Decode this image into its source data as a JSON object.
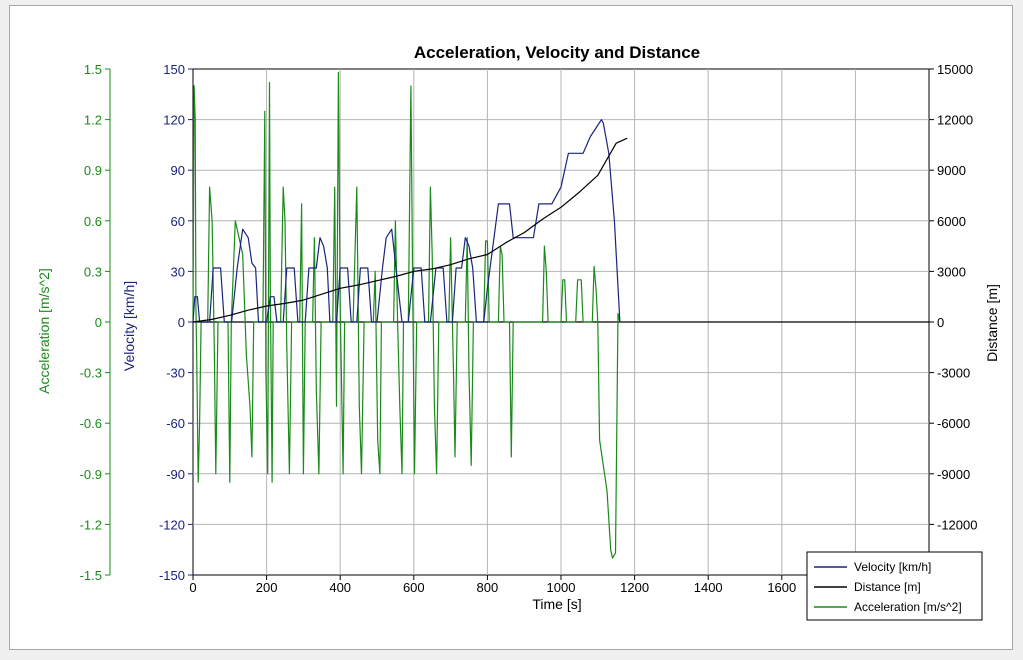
{
  "colors": {
    "acceleration": "#1a8a1a",
    "velocity": "#1a237e",
    "distance": "#000000",
    "grid": "#b4b4b4"
  },
  "chart_data": {
    "type": "line",
    "title": "Acceleration, Velocity and Distance",
    "xlabel": "Time [s]",
    "xlim": [
      0,
      2000
    ],
    "x_ticks": [
      "0",
      "200",
      "400",
      "600",
      "800",
      "1000",
      "1200",
      "1400",
      "1600"
    ],
    "grid": true,
    "legend_position": "bottom-right",
    "axes": {
      "acceleration": {
        "label": "Acceleration [m/s^2]",
        "range": [
          -1.5,
          1.5
        ],
        "ticks": [
          "1.5",
          "1.2",
          "0.9",
          "0.6",
          "0.3",
          "0",
          "-0.3",
          "-0.6",
          "-0.9",
          "-1.2",
          "-1.5"
        ]
      },
      "velocity": {
        "label": "Velocity [km/h]",
        "range": [
          -150,
          150
        ],
        "ticks": [
          "150",
          "120",
          "90",
          "60",
          "30",
          "0",
          "-30",
          "-60",
          "-90",
          "-120",
          "-150"
        ]
      },
      "distance": {
        "label": "Distance [m]",
        "range": [
          -15000,
          15000
        ],
        "ticks": [
          "15000",
          "12000",
          "9000",
          "6000",
          "3000",
          "0",
          "-3000",
          "-6000",
          "-9000",
          "-12000",
          "-15000"
        ]
      }
    },
    "series": [
      {
        "name": "Velocity [km/h]",
        "axis": "velocity",
        "points": [
          [
            0,
            0
          ],
          [
            5,
            15
          ],
          [
            12,
            15
          ],
          [
            18,
            0
          ],
          [
            45,
            0
          ],
          [
            55,
            32
          ],
          [
            75,
            32
          ],
          [
            85,
            0
          ],
          [
            105,
            0
          ],
          [
            120,
            32
          ],
          [
            135,
            55
          ],
          [
            150,
            50
          ],
          [
            160,
            35
          ],
          [
            170,
            32
          ],
          [
            178,
            0
          ],
          [
            200,
            0
          ],
          [
            210,
            15
          ],
          [
            220,
            15
          ],
          [
            228,
            0
          ],
          [
            245,
            0
          ],
          [
            255,
            32
          ],
          [
            275,
            32
          ],
          [
            285,
            0
          ],
          [
            305,
            0
          ],
          [
            315,
            32
          ],
          [
            335,
            32
          ],
          [
            345,
            50
          ],
          [
            355,
            45
          ],
          [
            365,
            32
          ],
          [
            372,
            0
          ],
          [
            390,
            0
          ],
          [
            400,
            32
          ],
          [
            420,
            32
          ],
          [
            430,
            0
          ],
          [
            445,
            0
          ],
          [
            455,
            32
          ],
          [
            475,
            32
          ],
          [
            485,
            0
          ],
          [
            500,
            0
          ],
          [
            515,
            32
          ],
          [
            525,
            50
          ],
          [
            540,
            55
          ],
          [
            550,
            35
          ],
          [
            560,
            15
          ],
          [
            568,
            0
          ],
          [
            585,
            0
          ],
          [
            600,
            32
          ],
          [
            620,
            32
          ],
          [
            630,
            0
          ],
          [
            645,
            0
          ],
          [
            660,
            32
          ],
          [
            680,
            32
          ],
          [
            690,
            0
          ],
          [
            705,
            0
          ],
          [
            715,
            32
          ],
          [
            730,
            32
          ],
          [
            740,
            50
          ],
          [
            750,
            45
          ],
          [
            760,
            32
          ],
          [
            770,
            0
          ],
          [
            790,
            0
          ],
          [
            800,
            20
          ],
          [
            830,
            70
          ],
          [
            860,
            70
          ],
          [
            870,
            50
          ],
          [
            925,
            50
          ],
          [
            940,
            70
          ],
          [
            975,
            70
          ],
          [
            1000,
            80
          ],
          [
            1020,
            100
          ],
          [
            1060,
            100
          ],
          [
            1080,
            110
          ],
          [
            1095,
            115
          ],
          [
            1110,
            120
          ],
          [
            1115,
            118
          ],
          [
            1130,
            100
          ],
          [
            1145,
            60
          ],
          [
            1160,
            0
          ]
        ]
      },
      {
        "name": "Distance [m]",
        "axis": "distance",
        "points": [
          [
            0,
            0
          ],
          [
            50,
            150
          ],
          [
            100,
            400
          ],
          [
            150,
            700
          ],
          [
            200,
            950
          ],
          [
            250,
            1100
          ],
          [
            300,
            1300
          ],
          [
            350,
            1650
          ],
          [
            400,
            2000
          ],
          [
            450,
            2200
          ],
          [
            500,
            2450
          ],
          [
            550,
            2700
          ],
          [
            600,
            3000
          ],
          [
            650,
            3150
          ],
          [
            700,
            3400
          ],
          [
            750,
            3750
          ],
          [
            800,
            4000
          ],
          [
            850,
            4700
          ],
          [
            900,
            5300
          ],
          [
            950,
            6100
          ],
          [
            1000,
            6800
          ],
          [
            1050,
            7700
          ],
          [
            1100,
            8700
          ],
          [
            1150,
            10600
          ],
          [
            1180,
            10900
          ]
        ]
      },
      {
        "name": "Acceleration [m/s^2]",
        "axis": "acceleration",
        "points": [
          [
            0,
            0
          ],
          [
            3,
            1.4
          ],
          [
            6,
            1.2
          ],
          [
            8,
            0.1
          ],
          [
            10,
            -0.2
          ],
          [
            14,
            -0.95
          ],
          [
            18,
            -0.6
          ],
          [
            22,
            0
          ],
          [
            40,
            0
          ],
          [
            45,
            0.8
          ],
          [
            52,
            0.6
          ],
          [
            58,
            -0.15
          ],
          [
            62,
            -0.9
          ],
          [
            68,
            0
          ],
          [
            95,
            0
          ],
          [
            100,
            -0.95
          ],
          [
            104,
            0
          ],
          [
            115,
            0.6
          ],
          [
            120,
            0.55
          ],
          [
            135,
            0.4
          ],
          [
            145,
            -0.2
          ],
          [
            155,
            -0.5
          ],
          [
            160,
            -0.8
          ],
          [
            165,
            0
          ],
          [
            190,
            0
          ],
          [
            195,
            1.25
          ],
          [
            198,
            -0.3
          ],
          [
            203,
            -0.9
          ],
          [
            208,
            1.42
          ],
          [
            210,
            0.2
          ],
          [
            215,
            -0.95
          ],
          [
            218,
            0
          ],
          [
            238,
            0
          ],
          [
            245,
            0.8
          ],
          [
            250,
            0.6
          ],
          [
            255,
            -0.15
          ],
          [
            262,
            -0.9
          ],
          [
            268,
            0
          ],
          [
            290,
            0
          ],
          [
            295,
            0.7
          ],
          [
            300,
            -0.9
          ],
          [
            305,
            0
          ],
          [
            325,
            0
          ],
          [
            330,
            0.5
          ],
          [
            335,
            -0.4
          ],
          [
            342,
            -0.9
          ],
          [
            348,
            0
          ],
          [
            380,
            0
          ],
          [
            385,
            0.8
          ],
          [
            390,
            -0.5
          ],
          [
            395,
            1.48
          ],
          [
            400,
            0.1
          ],
          [
            408,
            -0.9
          ],
          [
            412,
            0
          ],
          [
            435,
            0
          ],
          [
            445,
            0.8
          ],
          [
            452,
            -0.5
          ],
          [
            458,
            -0.9
          ],
          [
            465,
            0
          ],
          [
            490,
            0
          ],
          [
            495,
            0.3
          ],
          [
            502,
            -0.7
          ],
          [
            508,
            -0.9
          ],
          [
            512,
            0
          ],
          [
            545,
            0
          ],
          [
            550,
            0.6
          ],
          [
            556,
            0
          ],
          [
            562,
            -0.5
          ],
          [
            568,
            -0.9
          ],
          [
            572,
            0
          ],
          [
            585,
            0
          ],
          [
            592,
            1.4
          ],
          [
            597,
            0.2
          ],
          [
            602,
            -0.9
          ],
          [
            608,
            0
          ],
          [
            640,
            0
          ],
          [
            645,
            0.8
          ],
          [
            650,
            0.4
          ],
          [
            656,
            -0.5
          ],
          [
            662,
            -0.9
          ],
          [
            668,
            0
          ],
          [
            695,
            0
          ],
          [
            700,
            0.5
          ],
          [
            708,
            -0.3
          ],
          [
            712,
            -0.8
          ],
          [
            718,
            0
          ],
          [
            740,
            0
          ],
          [
            745,
            0.5
          ],
          [
            750,
            -0.3
          ],
          [
            756,
            -0.85
          ],
          [
            762,
            0
          ],
          [
            790,
            0
          ],
          [
            795,
            0.48
          ],
          [
            800,
            0.48
          ],
          [
            805,
            0
          ],
          [
            830,
            0
          ],
          [
            835,
            0.45
          ],
          [
            840,
            0.4
          ],
          [
            845,
            0
          ],
          [
            860,
            0
          ],
          [
            865,
            -0.8
          ],
          [
            870,
            0
          ],
          [
            950,
            0
          ],
          [
            955,
            0.45
          ],
          [
            960,
            0.3
          ],
          [
            965,
            0
          ],
          [
            1000,
            0
          ],
          [
            1005,
            0.25
          ],
          [
            1010,
            0.25
          ],
          [
            1015,
            0
          ],
          [
            1040,
            0
          ],
          [
            1045,
            0.25
          ],
          [
            1055,
            0.25
          ],
          [
            1060,
            0
          ],
          [
            1085,
            0
          ],
          [
            1090,
            0.33
          ],
          [
            1095,
            0.2
          ],
          [
            1100,
            0
          ],
          [
            1105,
            -0.7
          ],
          [
            1115,
            -0.85
          ],
          [
            1125,
            -1.0
          ],
          [
            1135,
            -1.35
          ],
          [
            1140,
            -1.4
          ],
          [
            1148,
            -1.37
          ],
          [
            1155,
            0.05
          ],
          [
            1160,
            0
          ]
        ]
      }
    ]
  }
}
